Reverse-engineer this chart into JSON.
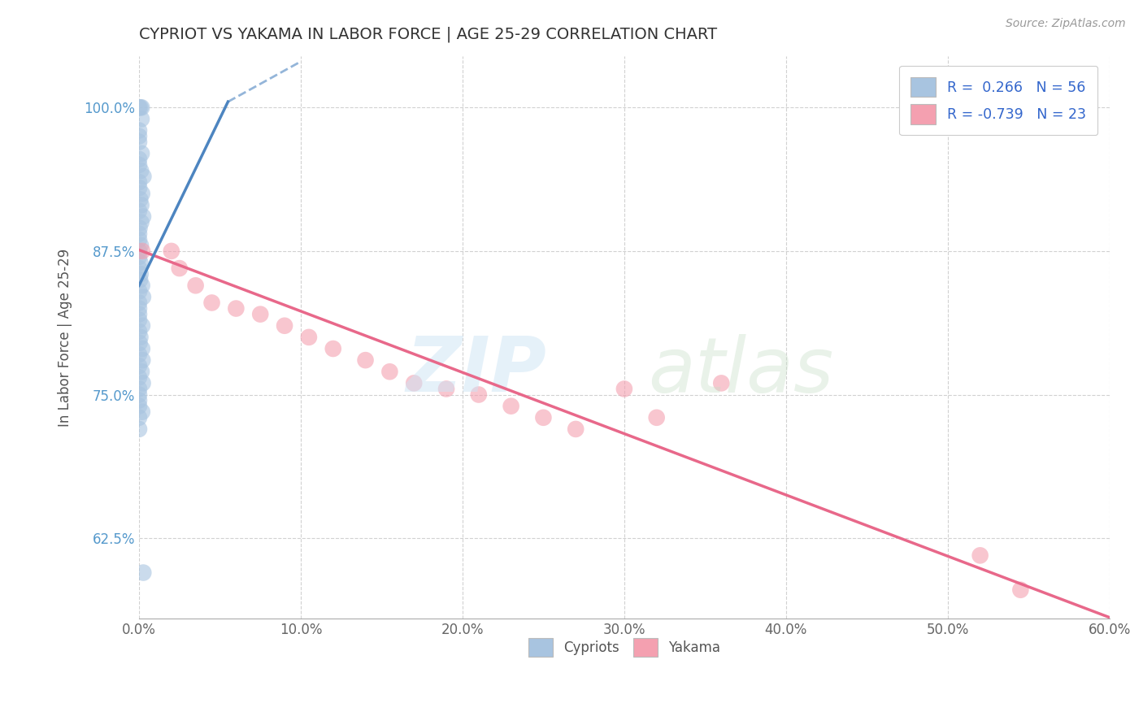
{
  "title": "CYPRIOT VS YAKAMA IN LABOR FORCE | AGE 25-29 CORRELATION CHART",
  "source_text": "Source: ZipAtlas.com",
  "ylabel": "In Labor Force | Age 25-29",
  "xlim": [
    0.0,
    0.6
  ],
  "ylim": [
    0.555,
    1.045
  ],
  "xtick_vals": [
    0.0,
    0.1,
    0.2,
    0.3,
    0.4,
    0.5,
    0.6
  ],
  "xtick_labels": [
    "0.0%",
    "10.0%",
    "20.0%",
    "30.0%",
    "40.0%",
    "50.0%",
    "60.0%"
  ],
  "ytick_vals": [
    0.625,
    0.75,
    0.875,
    1.0
  ],
  "ytick_labels": [
    "62.5%",
    "75.0%",
    "87.5%",
    "100.0%"
  ],
  "cypriot_R": 0.266,
  "cypriot_N": 56,
  "yakama_R": -0.739,
  "yakama_N": 23,
  "legend_labels": [
    "Cypriots",
    "Yakama"
  ],
  "cypriot_color": "#a8c4e0",
  "yakama_color": "#f4a0b0",
  "cypriot_line_color": "#4d85c0",
  "yakama_line_color": "#e8688a",
  "background_color": "#ffffff",
  "cypriot_x": [
    0.0,
    0.0,
    0.0,
    0.0,
    0.0,
    0.0,
    0.0,
    0.0,
    0.0,
    0.0,
    0.0,
    0.0,
    0.0,
    0.0,
    0.0,
    0.0,
    0.0,
    0.0,
    0.0,
    0.0,
    0.0,
    0.0,
    0.0,
    0.0,
    0.0,
    0.0,
    0.0,
    0.0,
    0.0,
    0.0,
    0.0,
    0.0,
    0.0,
    0.0,
    0.0,
    0.0,
    0.0,
    0.0,
    0.0,
    0.0,
    0.0,
    0.0,
    0.0,
    0.0,
    0.0,
    0.0,
    0.0,
    0.0,
    0.0,
    0.0,
    0.0,
    0.0,
    0.0,
    0.0,
    0.0,
    0.0
  ],
  "cypriot_y": [
    1.0,
    1.0,
    1.0,
    0.99,
    0.98,
    0.975,
    0.97,
    0.96,
    0.955,
    0.95,
    0.945,
    0.94,
    0.935,
    0.93,
    0.925,
    0.92,
    0.915,
    0.91,
    0.905,
    0.9,
    0.895,
    0.89,
    0.885,
    0.88,
    0.875,
    0.87,
    0.865,
    0.86,
    0.855,
    0.85,
    0.845,
    0.84,
    0.835,
    0.83,
    0.825,
    0.82,
    0.815,
    0.81,
    0.805,
    0.8,
    0.795,
    0.79,
    0.785,
    0.78,
    0.775,
    0.77,
    0.765,
    0.76,
    0.755,
    0.75,
    0.745,
    0.74,
    0.735,
    0.73,
    0.72,
    0.595
  ],
  "yakama_x": [
    0.002,
    0.02,
    0.025,
    0.035,
    0.045,
    0.06,
    0.075,
    0.09,
    0.105,
    0.12,
    0.14,
    0.155,
    0.17,
    0.19,
    0.21,
    0.23,
    0.25,
    0.27,
    0.3,
    0.32,
    0.36,
    0.52,
    0.545
  ],
  "yakama_y": [
    0.875,
    0.875,
    0.86,
    0.845,
    0.83,
    0.825,
    0.82,
    0.81,
    0.8,
    0.79,
    0.78,
    0.77,
    0.76,
    0.755,
    0.75,
    0.74,
    0.73,
    0.72,
    0.755,
    0.73,
    0.76,
    0.61,
    0.58
  ],
  "cypriot_line_x": [
    0.0,
    0.06
  ],
  "cypriot_line_y": [
    0.86,
    1.0
  ],
  "yakama_line_x": [
    0.0,
    0.6
  ],
  "yakama_line_y": [
    0.875,
    0.555
  ]
}
